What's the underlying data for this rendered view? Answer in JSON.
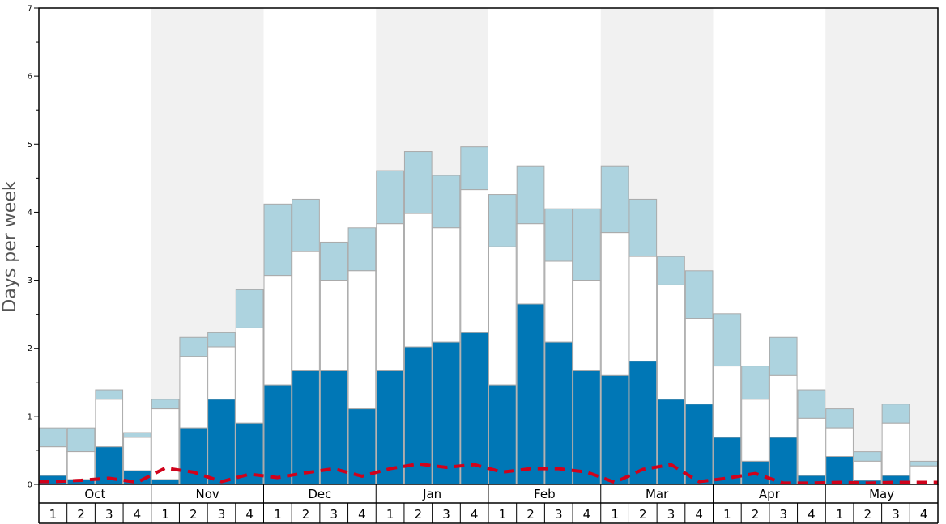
{
  "chart_data": {
    "type": "bar",
    "ylabel": "Days per week",
    "ylim": [
      0,
      7
    ],
    "yticks": [
      "0",
      "1",
      "2",
      "3",
      "4",
      "5",
      "6",
      "7"
    ],
    "months": [
      "Oct",
      "Nov",
      "Dec",
      "Jan",
      "Feb",
      "Mar",
      "Apr",
      "May"
    ],
    "weeks": [
      "1",
      "2",
      "3",
      "4"
    ],
    "colors": {
      "dark": "#0077b6",
      "light": "#add3df",
      "white": "#ffffff",
      "band": "#f1f1f1",
      "line": "#d0021b",
      "bar_border": "#aaaaaa"
    },
    "stack_bottom": [
      0.13,
      0.07,
      0.55,
      0.2,
      0.07,
      0.83,
      1.25,
      0.9,
      1.46,
      1.67,
      1.67,
      1.11,
      1.67,
      2.02,
      2.09,
      2.23,
      1.46,
      2.65,
      2.09,
      1.67,
      1.6,
      1.81,
      1.25,
      1.18,
      0.69,
      0.34,
      0.69,
      0.13,
      0.41,
      0.06,
      0.13,
      0.0
    ],
    "stack_middle_top": [
      0.55,
      0.48,
      1.25,
      0.69,
      1.11,
      1.88,
      2.02,
      2.3,
      3.07,
      3.42,
      3.0,
      3.14,
      3.83,
      3.98,
      3.77,
      4.33,
      3.49,
      3.83,
      3.28,
      3.0,
      3.7,
      3.35,
      2.93,
      2.44,
      1.74,
      1.25,
      1.6,
      0.97,
      0.83,
      0.34,
      0.9,
      0.27
    ],
    "stack_total": [
      0.83,
      0.83,
      1.39,
      0.76,
      1.25,
      2.16,
      2.23,
      2.86,
      4.12,
      4.19,
      3.56,
      3.77,
      4.61,
      4.89,
      4.54,
      4.96,
      4.26,
      4.68,
      4.05,
      4.05,
      4.68,
      4.19,
      3.35,
      3.14,
      2.51,
      1.74,
      2.16,
      1.39,
      1.11,
      0.48,
      1.18,
      0.34
    ],
    "trend_line": [
      0.04,
      0.06,
      0.09,
      0.03,
      0.24,
      0.18,
      0.04,
      0.15,
      0.1,
      0.17,
      0.23,
      0.12,
      0.23,
      0.3,
      0.25,
      0.29,
      0.18,
      0.23,
      0.23,
      0.18,
      0.03,
      0.22,
      0.29,
      0.04,
      0.09,
      0.16,
      0.02,
      0.02,
      0.03,
      0.02,
      0.03,
      0.03
    ]
  }
}
